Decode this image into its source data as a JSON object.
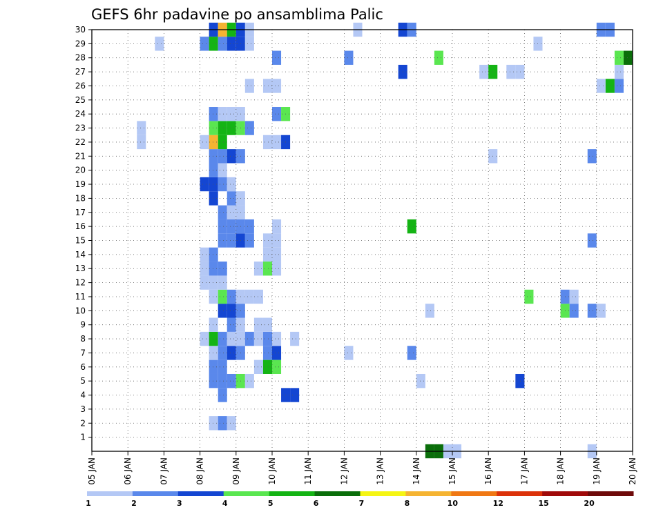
{
  "chart_data": {
    "type": "heatmap",
    "title": "GEFS 6hr padavine po ansamblima Palic",
    "x_tick_labels": [
      "05 JAN",
      "06 JAN",
      "07 JAN",
      "08 JAN",
      "09 JAN",
      "10 JAN",
      "11 JAN",
      "12 JAN",
      "13 JAN",
      "14 JAN",
      "15 JAN",
      "16 JAN",
      "17 JAN",
      "18 JAN",
      "19 JAN",
      "20 JAN"
    ],
    "y_tick_labels": [
      "1",
      "2",
      "3",
      "4",
      "5",
      "6",
      "7",
      "8",
      "9",
      "10",
      "11",
      "12",
      "13",
      "14",
      "15",
      "16",
      "17",
      "18",
      "19",
      "20",
      "21",
      "22",
      "23",
      "24",
      "25",
      "26",
      "27",
      "28",
      "29",
      "30"
    ],
    "x_step_hours": 6,
    "y_range": [
      0,
      30
    ],
    "grid": true,
    "legend": {
      "position": "bottom",
      "labels": [
        "1",
        "2",
        "3",
        "4",
        "5",
        "6",
        "7",
        "8",
        "10",
        "12",
        "15",
        "20"
      ],
      "colors": [
        "#b4c8f5",
        "#5a88eb",
        "#1446d2",
        "#5ae650",
        "#14b414",
        "#0a6e0a",
        "#f5f514",
        "#f5b432",
        "#f07814",
        "#dc320a",
        "#a00a0a",
        "#6e0a0a"
      ]
    },
    "cells_note": "each cell: [date, hour UTC, ensemble member, color class 1-12]",
    "cells": [
      [
        "06 JAN",
        "06",
        22,
        1
      ],
      [
        "06 JAN",
        "06",
        23,
        1
      ],
      [
        "06 JAN",
        "18",
        29,
        1
      ],
      [
        "08 JAN",
        "00",
        8,
        1
      ],
      [
        "08 JAN",
        "00",
        12,
        1
      ],
      [
        "08 JAN",
        "00",
        13,
        1
      ],
      [
        "08 JAN",
        "00",
        14,
        1
      ],
      [
        "08 JAN",
        "00",
        19,
        3
      ],
      [
        "08 JAN",
        "00",
        22,
        1
      ],
      [
        "08 JAN",
        "00",
        29,
        2
      ],
      [
        "08 JAN",
        "06",
        2,
        1
      ],
      [
        "08 JAN",
        "06",
        5,
        2
      ],
      [
        "08 JAN",
        "06",
        6,
        2
      ],
      [
        "08 JAN",
        "06",
        7,
        1
      ],
      [
        "08 JAN",
        "06",
        8,
        5
      ],
      [
        "08 JAN",
        "06",
        9,
        1
      ],
      [
        "08 JAN",
        "06",
        11,
        1
      ],
      [
        "08 JAN",
        "06",
        12,
        1
      ],
      [
        "08 JAN",
        "06",
        13,
        2
      ],
      [
        "08 JAN",
        "06",
        14,
        2
      ],
      [
        "08 JAN",
        "06",
        18,
        3
      ],
      [
        "08 JAN",
        "06",
        19,
        3
      ],
      [
        "08 JAN",
        "06",
        20,
        2
      ],
      [
        "08 JAN",
        "06",
        21,
        2
      ],
      [
        "08 JAN",
        "06",
        22,
        8
      ],
      [
        "08 JAN",
        "06",
        23,
        4
      ],
      [
        "08 JAN",
        "06",
        24,
        2
      ],
      [
        "08 JAN",
        "06",
        29,
        5
      ],
      [
        "08 JAN",
        "06",
        30,
        3
      ],
      [
        "08 JAN",
        "12",
        2,
        2
      ],
      [
        "08 JAN",
        "12",
        4,
        2
      ],
      [
        "08 JAN",
        "12",
        5,
        2
      ],
      [
        "08 JAN",
        "12",
        6,
        2
      ],
      [
        "08 JAN",
        "12",
        7,
        2
      ],
      [
        "08 JAN",
        "12",
        8,
        2
      ],
      [
        "08 JAN",
        "12",
        10,
        3
      ],
      [
        "08 JAN",
        "12",
        11,
        4
      ],
      [
        "08 JAN",
        "12",
        12,
        1
      ],
      [
        "08 JAN",
        "12",
        13,
        2
      ],
      [
        "08 JAN",
        "12",
        15,
        2
      ],
      [
        "08 JAN",
        "12",
        16,
        2
      ],
      [
        "08 JAN",
        "12",
        17,
        2
      ],
      [
        "08 JAN",
        "12",
        19,
        2
      ],
      [
        "08 JAN",
        "12",
        20,
        1
      ],
      [
        "08 JAN",
        "12",
        21,
        2
      ],
      [
        "08 JAN",
        "12",
        22,
        5
      ],
      [
        "08 JAN",
        "12",
        23,
        5
      ],
      [
        "08 JAN",
        "12",
        24,
        1
      ],
      [
        "08 JAN",
        "12",
        29,
        2
      ],
      [
        "08 JAN",
        "12",
        30,
        8
      ],
      [
        "08 JAN",
        "18",
        2,
        1
      ],
      [
        "08 JAN",
        "18",
        5,
        2
      ],
      [
        "08 JAN",
        "18",
        7,
        3
      ],
      [
        "08 JAN",
        "18",
        8,
        1
      ],
      [
        "08 JAN",
        "18",
        9,
        2
      ],
      [
        "08 JAN",
        "18",
        10,
        3
      ],
      [
        "08 JAN",
        "18",
        11,
        2
      ],
      [
        "08 JAN",
        "18",
        15,
        2
      ],
      [
        "08 JAN",
        "18",
        16,
        2
      ],
      [
        "08 JAN",
        "18",
        17,
        1
      ],
      [
        "08 JAN",
        "18",
        18,
        2
      ],
      [
        "08 JAN",
        "18",
        19,
        1
      ],
      [
        "08 JAN",
        "18",
        21,
        3
      ],
      [
        "08 JAN",
        "18",
        23,
        5
      ],
      [
        "08 JAN",
        "18",
        24,
        1
      ],
      [
        "08 JAN",
        "18",
        29,
        3
      ],
      [
        "08 JAN",
        "18",
        30,
        5
      ],
      [
        "09 JAN",
        "00",
        5,
        4
      ],
      [
        "09 JAN",
        "00",
        7,
        2
      ],
      [
        "09 JAN",
        "00",
        8,
        1
      ],
      [
        "09 JAN",
        "00",
        9,
        1
      ],
      [
        "09 JAN",
        "00",
        10,
        2
      ],
      [
        "09 JAN",
        "00",
        11,
        1
      ],
      [
        "09 JAN",
        "00",
        15,
        3
      ],
      [
        "09 JAN",
        "00",
        16,
        2
      ],
      [
        "09 JAN",
        "00",
        17,
        1
      ],
      [
        "09 JAN",
        "00",
        18,
        1
      ],
      [
        "09 JAN",
        "00",
        21,
        2
      ],
      [
        "09 JAN",
        "00",
        23,
        4
      ],
      [
        "09 JAN",
        "00",
        24,
        1
      ],
      [
        "09 JAN",
        "00",
        29,
        3
      ],
      [
        "09 JAN",
        "00",
        30,
        3
      ],
      [
        "09 JAN",
        "06",
        5,
        1
      ],
      [
        "09 JAN",
        "06",
        8,
        2
      ],
      [
        "09 JAN",
        "06",
        11,
        1
      ],
      [
        "09 JAN",
        "06",
        15,
        2
      ],
      [
        "09 JAN",
        "06",
        16,
        2
      ],
      [
        "09 JAN",
        "06",
        23,
        2
      ],
      [
        "09 JAN",
        "06",
        26,
        1
      ],
      [
        "09 JAN",
        "06",
        29,
        1
      ],
      [
        "09 JAN",
        "06",
        30,
        1
      ],
      [
        "09 JAN",
        "12",
        6,
        1
      ],
      [
        "09 JAN",
        "12",
        8,
        1
      ],
      [
        "09 JAN",
        "12",
        9,
        1
      ],
      [
        "09 JAN",
        "12",
        11,
        1
      ],
      [
        "09 JAN",
        "12",
        13,
        1
      ],
      [
        "09 JAN",
        "18",
        6,
        5
      ],
      [
        "09 JAN",
        "18",
        7,
        2
      ],
      [
        "09 JAN",
        "18",
        8,
        2
      ],
      [
        "09 JAN",
        "18",
        9,
        1
      ],
      [
        "09 JAN",
        "18",
        13,
        4
      ],
      [
        "09 JAN",
        "18",
        14,
        1
      ],
      [
        "09 JAN",
        "18",
        15,
        1
      ],
      [
        "09 JAN",
        "18",
        22,
        1
      ],
      [
        "09 JAN",
        "18",
        26,
        1
      ],
      [
        "10 JAN",
        "00",
        6,
        4
      ],
      [
        "10 JAN",
        "00",
        7,
        3
      ],
      [
        "10 JAN",
        "00",
        8,
        1
      ],
      [
        "10 JAN",
        "00",
        13,
        1
      ],
      [
        "10 JAN",
        "00",
        14,
        1
      ],
      [
        "10 JAN",
        "00",
        15,
        1
      ],
      [
        "10 JAN",
        "00",
        16,
        1
      ],
      [
        "10 JAN",
        "00",
        22,
        1
      ],
      [
        "10 JAN",
        "00",
        24,
        2
      ],
      [
        "10 JAN",
        "00",
        26,
        1
      ],
      [
        "10 JAN",
        "00",
        28,
        2
      ],
      [
        "10 JAN",
        "06",
        4,
        3
      ],
      [
        "10 JAN",
        "06",
        22,
        3
      ],
      [
        "10 JAN",
        "06",
        24,
        4
      ],
      [
        "10 JAN",
        "12",
        4,
        3
      ],
      [
        "10 JAN",
        "12",
        8,
        1
      ],
      [
        "12 JAN",
        "00",
        7,
        1
      ],
      [
        "12 JAN",
        "00",
        28,
        2
      ],
      [
        "12 JAN",
        "06",
        30,
        1
      ],
      [
        "13 JAN",
        "12",
        27,
        3
      ],
      [
        "13 JAN",
        "12",
        30,
        3
      ],
      [
        "13 JAN",
        "18",
        7,
        2
      ],
      [
        "13 JAN",
        "18",
        16,
        5
      ],
      [
        "13 JAN",
        "18",
        30,
        2
      ],
      [
        "14 JAN",
        "00",
        5,
        1
      ],
      [
        "14 JAN",
        "06",
        10,
        1
      ],
      [
        "14 JAN",
        "06",
        0,
        6
      ],
      [
        "14 JAN",
        "12",
        0,
        6
      ],
      [
        "14 JAN",
        "12",
        28,
        4
      ],
      [
        "14 JAN",
        "18",
        0,
        1
      ],
      [
        "15 JAN",
        "00",
        0,
        1
      ],
      [
        "15 JAN",
        "18",
        27,
        1
      ],
      [
        "16 JAN",
        "00",
        21,
        1
      ],
      [
        "16 JAN",
        "00",
        27,
        5
      ],
      [
        "16 JAN",
        "12",
        27,
        1
      ],
      [
        "16 JAN",
        "18",
        5,
        3
      ],
      [
        "16 JAN",
        "18",
        27,
        1
      ],
      [
        "17 JAN",
        "00",
        11,
        4
      ],
      [
        "17 JAN",
        "06",
        29,
        1
      ],
      [
        "18 JAN",
        "00",
        10,
        4
      ],
      [
        "18 JAN",
        "00",
        11,
        2
      ],
      [
        "18 JAN",
        "06",
        10,
        2
      ],
      [
        "18 JAN",
        "06",
        11,
        1
      ],
      [
        "18 JAN",
        "18",
        10,
        2
      ],
      [
        "18 JAN",
        "18",
        15,
        2
      ],
      [
        "18 JAN",
        "18",
        21,
        2
      ],
      [
        "18 JAN",
        "18",
        0,
        1
      ],
      [
        "19 JAN",
        "00",
        10,
        1
      ],
      [
        "19 JAN",
        "00",
        26,
        1
      ],
      [
        "19 JAN",
        "00",
        30,
        2
      ],
      [
        "19 JAN",
        "06",
        26,
        5
      ],
      [
        "19 JAN",
        "06",
        30,
        2
      ],
      [
        "19 JAN",
        "12",
        26,
        2
      ],
      [
        "19 JAN",
        "12",
        27,
        1
      ],
      [
        "19 JAN",
        "12",
        28,
        4
      ],
      [
        "19 JAN",
        "18",
        28,
        6
      ]
    ]
  }
}
